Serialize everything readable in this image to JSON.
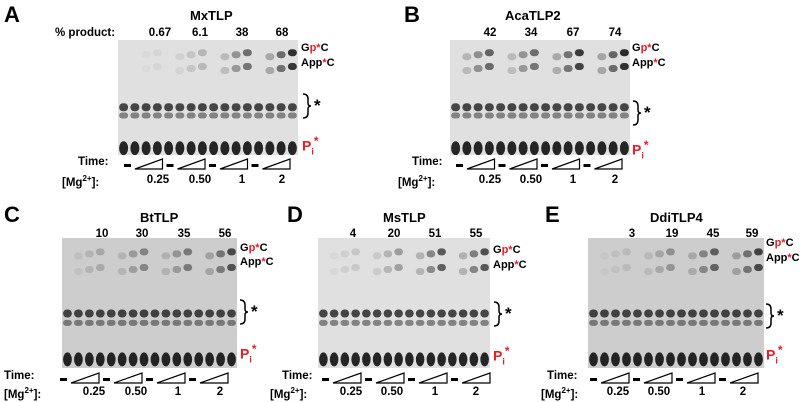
{
  "figure": {
    "panels": [
      {
        "letter": "A",
        "title": "MxTLP",
        "percent_label": "% product:",
        "percents": [
          "0.67",
          "6.1",
          "38",
          "68"
        ],
        "product_levels": [
          0.05,
          0.2,
          0.55,
          0.85
        ],
        "band_labels": {
          "gpc_g": "G",
          "gpc_p": "p",
          "gpc_star": "*",
          "gpc_c": "C",
          "appc_a": "App",
          "appc_star": "*",
          "appc_c": "C",
          "star": "*",
          "pi_main": "P",
          "pi_sub": "i",
          "pi_sup": "*"
        },
        "time_label": "Time:",
        "mg_label": "[Mg",
        "mg_sup": "2+",
        "mg_close": "]:",
        "concentrations": [
          "0.25",
          "0.50",
          "1",
          "2"
        ],
        "dash": "-"
      },
      {
        "letter": "B",
        "title": "AcaTLP2",
        "percents": [
          "42",
          "34",
          "67",
          "74"
        ],
        "product_levels": [
          0.6,
          0.55,
          0.8,
          0.88
        ],
        "band_labels": {
          "gpc_g": "G",
          "gpc_p": "p",
          "gpc_star": "*",
          "gpc_c": "C",
          "appc_a": "App",
          "appc_star": "*",
          "appc_c": "C",
          "star": "*",
          "pi_main": "P",
          "pi_sub": "i",
          "pi_sup": "*"
        },
        "time_label": "Time:",
        "mg_label": "[Mg",
        "mg_sup": "2+",
        "mg_close": "]:",
        "concentrations": [
          "0.25",
          "0.50",
          "1",
          "2"
        ],
        "dash": "-"
      },
      {
        "letter": "C",
        "title": "BtTLP",
        "percents": [
          "10",
          "30",
          "35",
          "56"
        ],
        "product_levels": [
          0.2,
          0.4,
          0.45,
          0.7
        ],
        "band_labels": {
          "gpc_g": "G",
          "gpc_p": "p",
          "gpc_star": "*",
          "gpc_c": "C",
          "appc_a": "App",
          "appc_star": "*",
          "appc_c": "C",
          "star": "*",
          "pi_main": "P",
          "pi_sub": "i",
          "pi_sup": "*"
        },
        "time_label": "Time:",
        "mg_label": "[Mg",
        "mg_sup": "2+",
        "mg_close": "]:",
        "concentrations": [
          "0.25",
          "0.50",
          "1",
          "2"
        ],
        "dash": "-"
      },
      {
        "letter": "D",
        "title": "MsTLP",
        "percents": [
          "4",
          "20",
          "51",
          "55"
        ],
        "product_levels": [
          0.12,
          0.32,
          0.65,
          0.7
        ],
        "band_labels": {
          "gpc_g": "G",
          "gpc_p": "p",
          "gpc_star": "*",
          "gpc_c": "C",
          "appc_a": "App",
          "appc_star": "*",
          "appc_c": "C",
          "star": "*",
          "pi_main": "P",
          "pi_sub": "i",
          "pi_sup": "*"
        },
        "time_label": "Time:",
        "mg_label": "[Mg",
        "mg_sup": "2+",
        "mg_close": "]:",
        "concentrations": [
          "0.25",
          "0.50",
          "1",
          "2"
        ],
        "dash": "-"
      },
      {
        "letter": "E",
        "title": "DdiTLP4",
        "percents": [
          "3",
          "19",
          "45",
          "59"
        ],
        "product_levels": [
          0.1,
          0.32,
          0.6,
          0.75
        ],
        "band_labels": {
          "gpc_g": "G",
          "gpc_p": "p",
          "gpc_star": "*",
          "gpc_c": "C",
          "appc_a": "App",
          "appc_star": "*",
          "appc_c": "C",
          "star": "*",
          "pi_main": "P",
          "pi_sub": "i",
          "pi_sup": "*"
        },
        "time_label": "Time:",
        "mg_label": "[Mg",
        "mg_sup": "2+",
        "mg_close": "]:",
        "concentrations": [
          "0.25",
          "0.50",
          "1",
          "2"
        ],
        "dash": "-"
      }
    ],
    "colors": {
      "accent_red": "#e41e26",
      "band": "#111111"
    }
  }
}
